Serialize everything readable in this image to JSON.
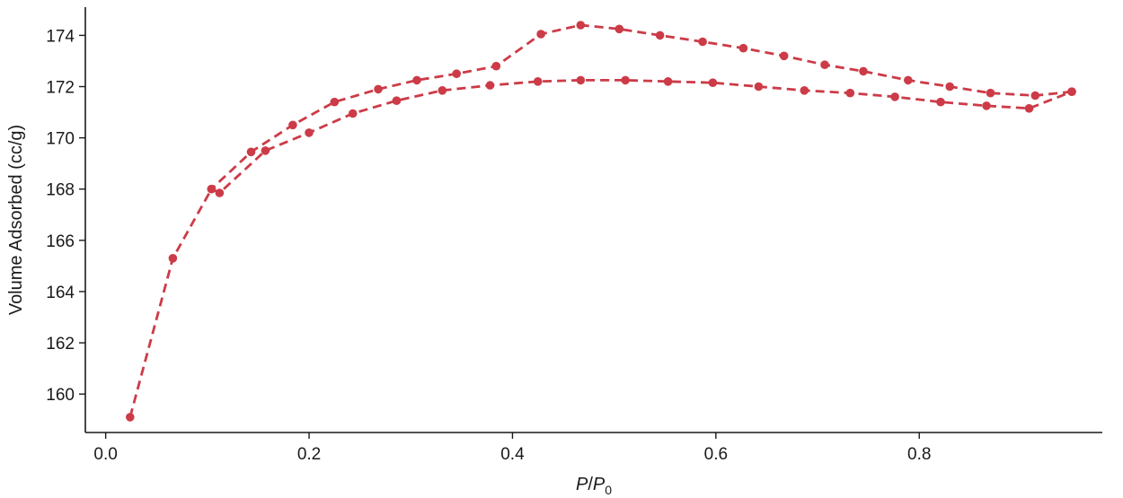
{
  "chart_data": {
    "type": "line",
    "xlabel_italic_1": "P",
    "xlabel_sep": "/",
    "xlabel_italic_2": "P",
    "xlabel_sub": "0",
    "ylabel": "Volume Adsorbed (cc/g)",
    "xlim": [
      -0.02,
      0.98
    ],
    "ylim": [
      158.5,
      175.1
    ],
    "xticks": [
      0.0,
      0.2,
      0.4,
      0.6,
      0.8
    ],
    "xtick_labels": [
      "0.0",
      "0.2",
      "0.4",
      "0.6",
      "0.8"
    ],
    "yticks": [
      160,
      162,
      164,
      166,
      168,
      170,
      172,
      174
    ],
    "ytick_labels": [
      "160",
      "162",
      "164",
      "166",
      "168",
      "170",
      "172",
      "174"
    ],
    "grid": false,
    "color": "#cc3b47",
    "series": [
      {
        "x": [
          0.024,
          0.066,
          0.104,
          0.112,
          0.157,
          0.2,
          0.243,
          0.286,
          0.331,
          0.378,
          0.425,
          0.467,
          0.511,
          0.553,
          0.597,
          0.642,
          0.687,
          0.732,
          0.776,
          0.821,
          0.866,
          0.908,
          0.95
        ],
        "y": [
          159.1,
          165.3,
          168.0,
          167.85,
          169.5,
          170.2,
          170.95,
          171.45,
          171.85,
          172.05,
          172.2,
          172.25,
          172.25,
          172.2,
          172.15,
          172.0,
          171.85,
          171.75,
          171.6,
          171.4,
          171.25,
          171.15,
          171.8
        ]
      },
      {
        "x": [
          0.95,
          0.914,
          0.87,
          0.83,
          0.789,
          0.745,
          0.707,
          0.667,
          0.627,
          0.587,
          0.545,
          0.505,
          0.467,
          0.428,
          0.384,
          0.345,
          0.306,
          0.268,
          0.225,
          0.184,
          0.143,
          0.104
        ],
        "y": [
          171.8,
          171.65,
          171.75,
          172.0,
          172.25,
          172.6,
          172.85,
          173.2,
          173.5,
          173.75,
          174.0,
          174.25,
          174.4,
          174.05,
          172.8,
          172.5,
          172.25,
          171.9,
          171.4,
          170.5,
          169.45,
          168.0
        ]
      }
    ]
  }
}
